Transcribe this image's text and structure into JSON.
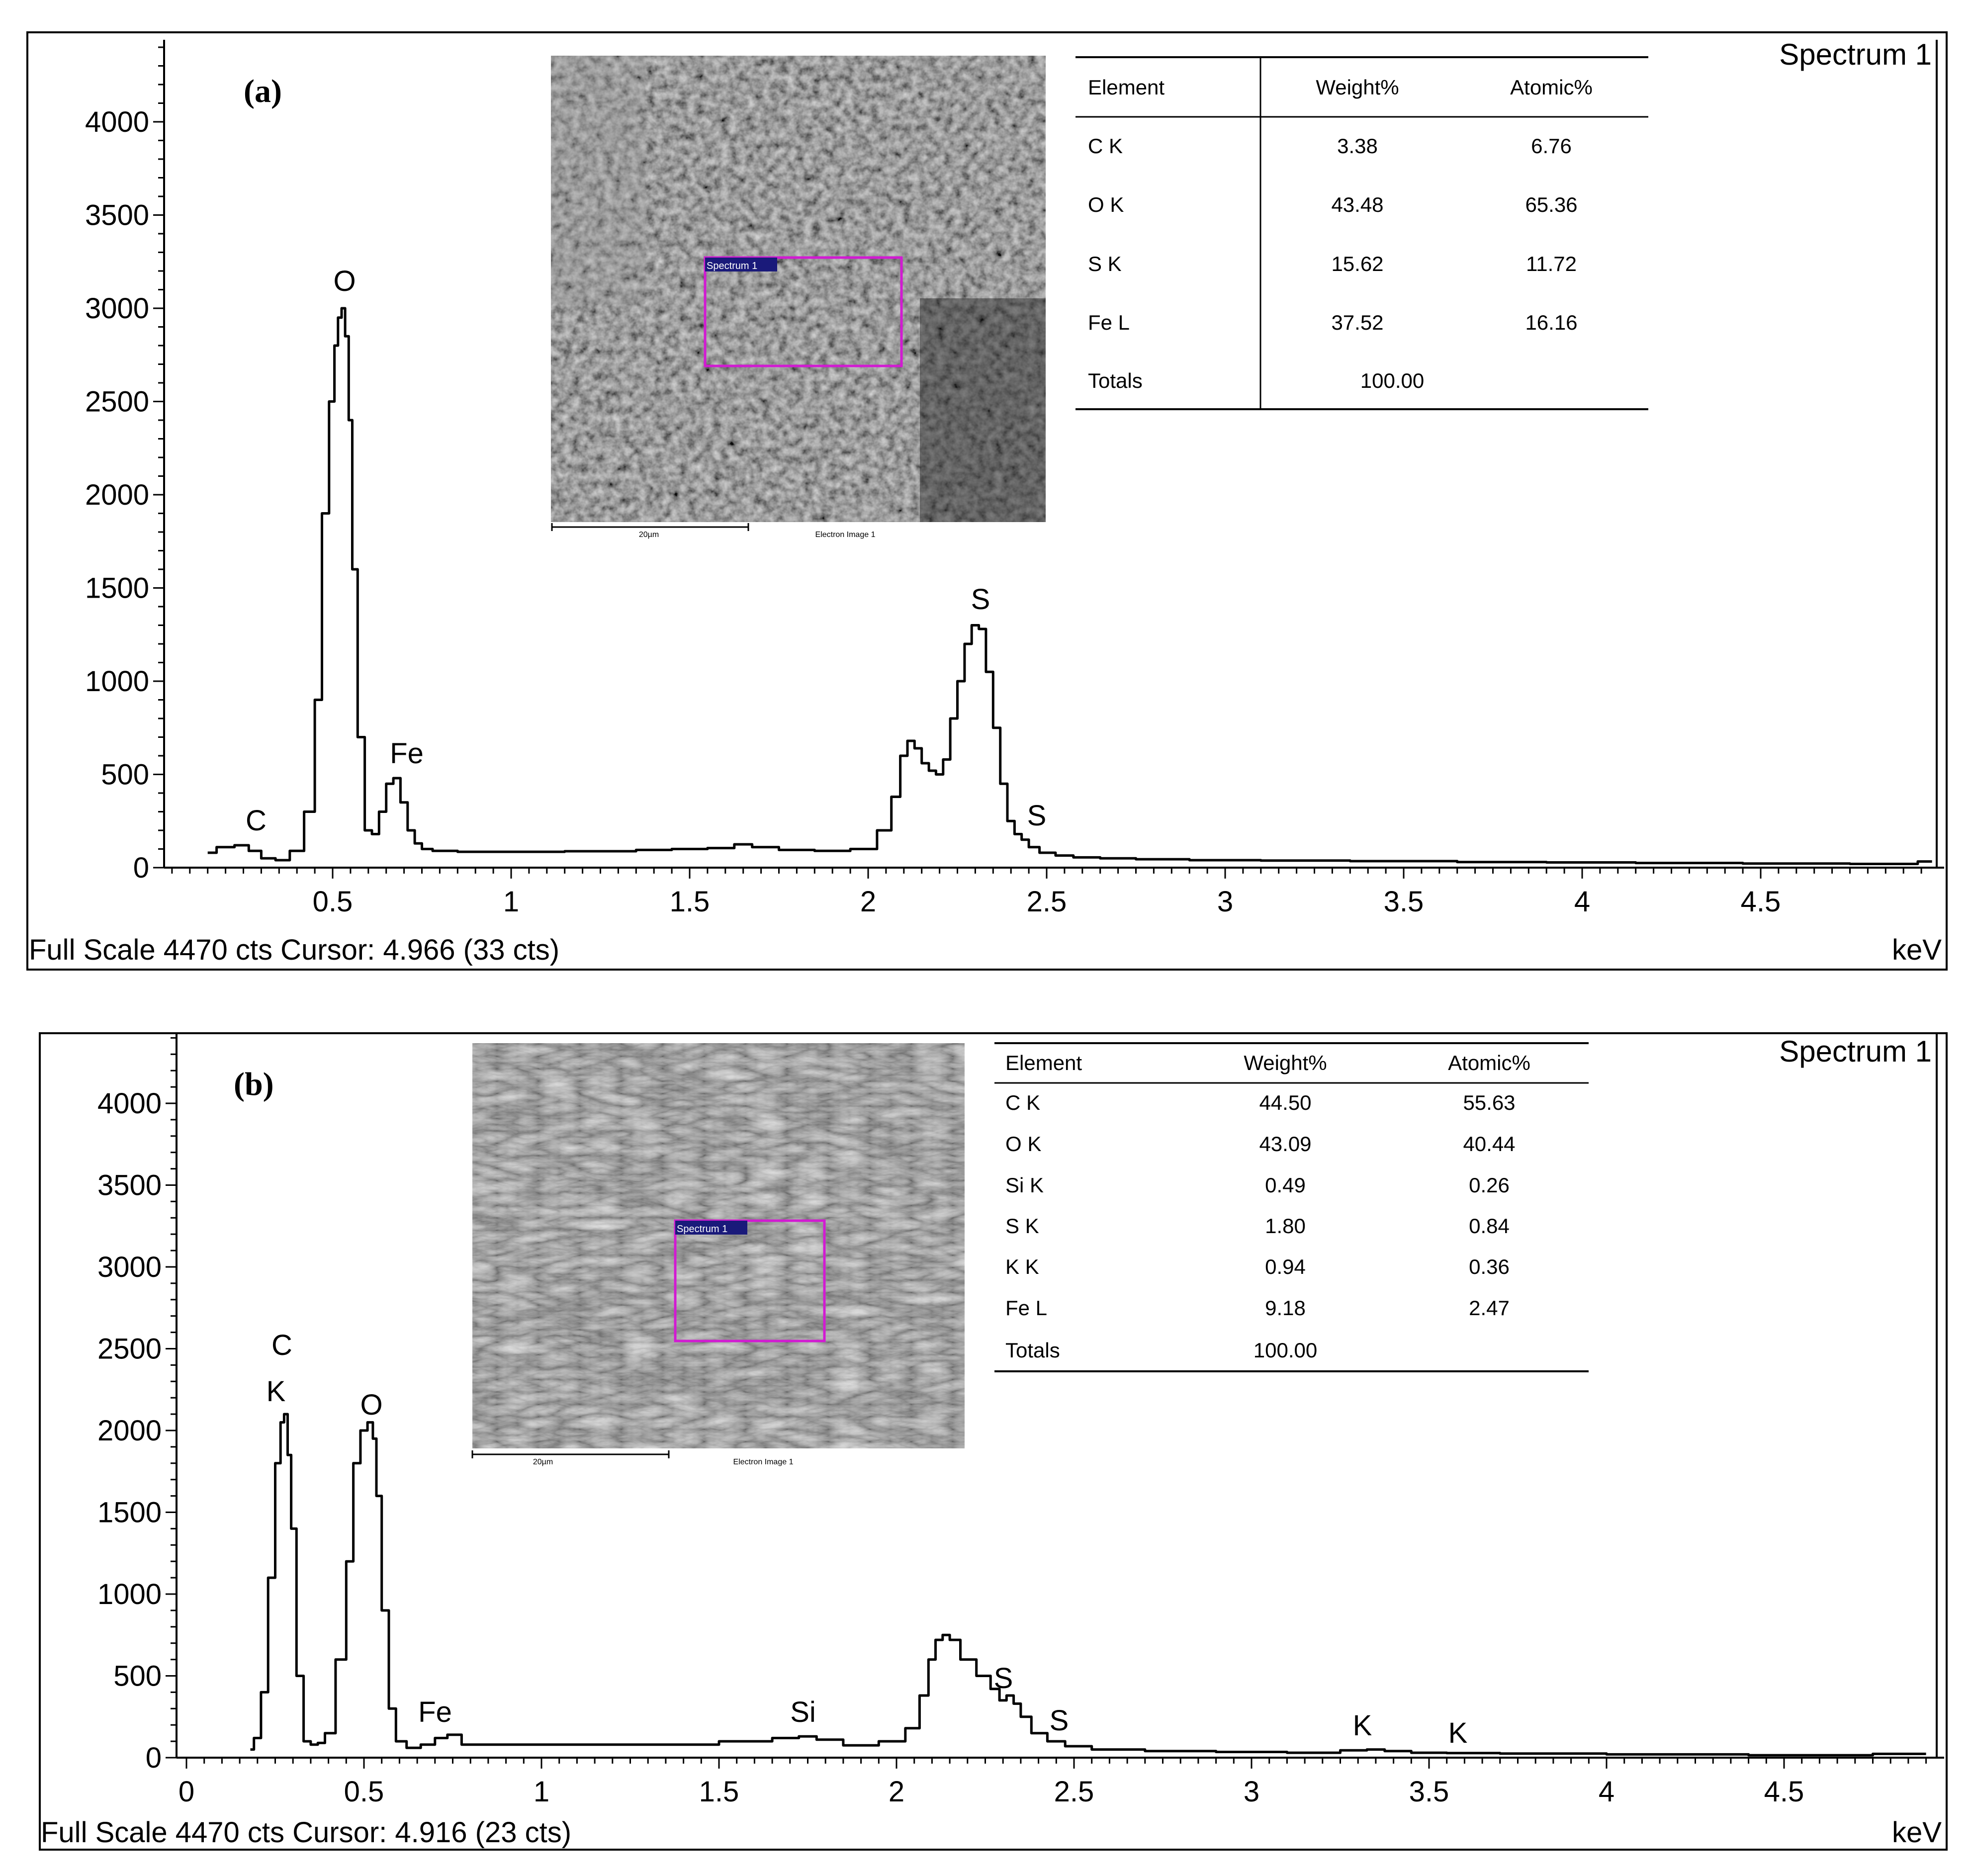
{
  "chart_data": [
    {
      "panel": "(a)",
      "type": "line",
      "title": "Spectrum 1",
      "xlabel": "keV",
      "ylabel": "",
      "xlim": [
        0.0,
        5.0
      ],
      "ylim": [
        0,
        4470
      ],
      "x_ticks": [
        0.5,
        1,
        1.5,
        2,
        2.5,
        3,
        3.5,
        4,
        4.5
      ],
      "y_ticks": [
        0,
        500,
        1000,
        1500,
        2000,
        2500,
        3000,
        3500,
        4000
      ],
      "footer": "Full Scale 4470 cts Cursor: 4.966  (33 cts)",
      "series": [
        {
          "x": [
            0.15,
            0.2,
            0.25,
            0.28,
            0.32,
            0.36,
            0.4,
            0.44,
            0.46,
            0.48,
            0.5,
            0.51,
            0.52,
            0.53,
            0.54,
            0.55,
            0.56,
            0.58,
            0.6,
            0.62,
            0.64,
            0.66,
            0.68,
            0.7,
            0.72,
            0.74,
            0.76,
            0.8,
            0.9,
            1.0,
            1.1,
            1.2,
            1.3,
            1.4,
            1.5,
            1.6,
            1.65,
            1.7,
            1.8,
            1.9,
            2.0,
            2.05,
            2.08,
            2.1,
            2.12,
            2.14,
            2.16,
            2.18,
            2.2,
            2.22,
            2.24,
            2.26,
            2.28,
            2.3,
            2.32,
            2.34,
            2.36,
            2.38,
            2.4,
            2.42,
            2.44,
            2.46,
            2.5,
            2.55,
            2.6,
            2.7,
            2.8,
            3.0,
            3.2,
            3.5,
            3.8,
            4.0,
            4.3,
            4.6,
            4.9,
            4.98
          ],
          "values": [
            80,
            110,
            120,
            90,
            50,
            40,
            90,
            300,
            900,
            1900,
            2500,
            2800,
            2950,
            3000,
            2850,
            2400,
            1600,
            700,
            200,
            180,
            300,
            450,
            480,
            350,
            200,
            130,
            100,
            90,
            85,
            85,
            85,
            88,
            88,
            95,
            100,
            105,
            125,
            110,
            95,
            90,
            100,
            200,
            380,
            600,
            680,
            640,
            560,
            520,
            500,
            580,
            800,
            1000,
            1200,
            1300,
            1280,
            1050,
            750,
            450,
            250,
            180,
            150,
            110,
            80,
            65,
            55,
            50,
            45,
            40,
            38,
            35,
            30,
            28,
            25,
            22,
            20,
            33
          ]
        }
      ],
      "peak_labels": [
        "C",
        "O",
        "Fe",
        "S",
        "S"
      ],
      "table": {
        "headers": [
          "Element",
          "Weight%",
          "Atomic%"
        ],
        "rows": [
          [
            "C K",
            "3.38",
            "6.76"
          ],
          [
            "O K",
            "43.48",
            "65.36"
          ],
          [
            "S K",
            "15.62",
            "11.72"
          ],
          [
            "Fe L",
            "37.52",
            "16.16"
          ],
          [
            "Totals",
            "100.00",
            ""
          ]
        ]
      },
      "sem_image": {
        "scale": "20µm",
        "caption": "Electron Image 1",
        "roi_label": "Spectrum 1"
      }
    },
    {
      "panel": "(b)",
      "type": "line",
      "title": "Spectrum 1",
      "xlabel": "keV",
      "ylabel": "",
      "xlim": [
        0.0,
        5.0
      ],
      "ylim": [
        0,
        4470
      ],
      "x_ticks": [
        0,
        0.5,
        1,
        1.5,
        2,
        2.5,
        3,
        3.5,
        4,
        4.5
      ],
      "y_ticks": [
        0,
        500,
        1000,
        1500,
        2000,
        2500,
        3000,
        3500,
        4000
      ],
      "footer": "Full Scale 4470 cts Cursor: 4.916  (23 cts)",
      "series": [
        {
          "x": [
            0.18,
            0.2,
            0.22,
            0.24,
            0.26,
            0.27,
            0.28,
            0.29,
            0.3,
            0.32,
            0.34,
            0.36,
            0.38,
            0.4,
            0.44,
            0.46,
            0.48,
            0.5,
            0.52,
            0.53,
            0.54,
            0.56,
            0.58,
            0.6,
            0.64,
            0.68,
            0.72,
            0.75,
            0.8,
            1.0,
            1.2,
            1.4,
            1.6,
            1.7,
            1.75,
            1.8,
            1.9,
            2.0,
            2.05,
            2.08,
            2.1,
            2.12,
            2.14,
            2.16,
            2.2,
            2.25,
            2.28,
            2.3,
            2.32,
            2.34,
            2.36,
            2.4,
            2.45,
            2.5,
            2.6,
            2.8,
            3.0,
            3.2,
            3.3,
            3.35,
            3.4,
            3.5,
            3.6,
            3.8,
            4.2,
            4.6,
            4.9
          ],
          "values": [
            50,
            120,
            400,
            1100,
            1800,
            2050,
            2100,
            1850,
            1400,
            500,
            100,
            80,
            90,
            150,
            600,
            1200,
            1800,
            2000,
            2050,
            1950,
            1600,
            900,
            300,
            100,
            60,
            80,
            120,
            140,
            80,
            80,
            80,
            80,
            100,
            120,
            130,
            110,
            75,
            100,
            180,
            380,
            600,
            720,
            750,
            720,
            600,
            500,
            420,
            350,
            380,
            330,
            250,
            150,
            100,
            70,
            50,
            40,
            35,
            30,
            45,
            50,
            40,
            30,
            28,
            25,
            20,
            15,
            23
          ]
        }
      ],
      "peak_labels": [
        "C",
        "K",
        "O",
        "Fe",
        "Si",
        "S",
        "S",
        "K",
        "K"
      ],
      "table": {
        "headers": [
          "Element",
          "Weight%",
          "Atomic%"
        ],
        "rows": [
          [
            "C K",
            "44.50",
            "55.63"
          ],
          [
            "O K",
            "43.09",
            "40.44"
          ],
          [
            "Si K",
            "0.49",
            "0.26"
          ],
          [
            "S K",
            "1.80",
            "0.84"
          ],
          [
            "K K",
            "0.94",
            "0.36"
          ],
          [
            "Fe L",
            "9.18",
            "2.47"
          ],
          [
            "Totals",
            "100.00",
            ""
          ]
        ]
      },
      "sem_image": {
        "scale": "20µm",
        "caption": "Electron Image 1",
        "roi_label": "Spectrum 1"
      }
    }
  ]
}
